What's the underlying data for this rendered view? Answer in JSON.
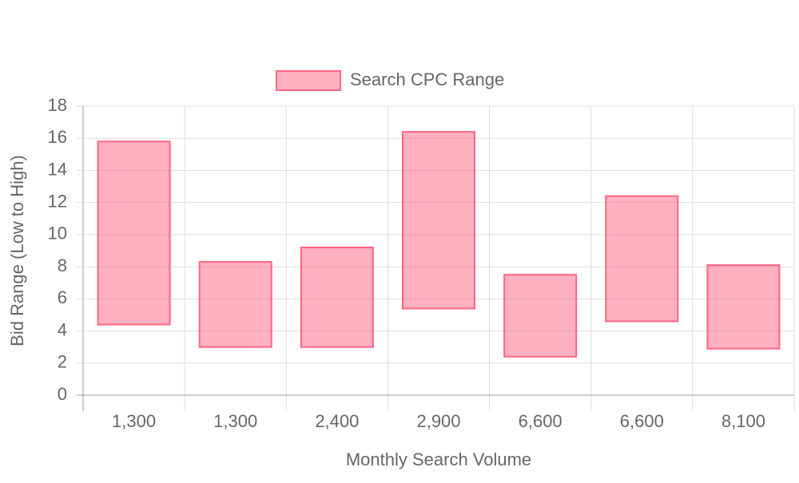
{
  "chart_data": {
    "type": "floating-bar",
    "categories": [
      "1,300",
      "1,300",
      "2,400",
      "2,900",
      "6,600",
      "6,600",
      "8,100"
    ],
    "series": [
      {
        "name": "Search CPC Range",
        "color": "#ff6384",
        "values": [
          [
            4.4,
            15.8
          ],
          [
            3.0,
            8.3
          ],
          [
            3.0,
            9.2
          ],
          [
            5.4,
            16.4
          ],
          [
            2.4,
            7.5
          ],
          [
            4.6,
            12.4
          ],
          [
            2.9,
            8.1
          ]
        ]
      }
    ],
    "x_label": "Monthly Search Volume",
    "y_label": "Bid Range (Low to High)",
    "ylim": [
      0,
      18
    ],
    "yticks": [
      0,
      2,
      4,
      6,
      8,
      10,
      12,
      14,
      16,
      18
    ],
    "grid": true,
    "legend": "top"
  }
}
